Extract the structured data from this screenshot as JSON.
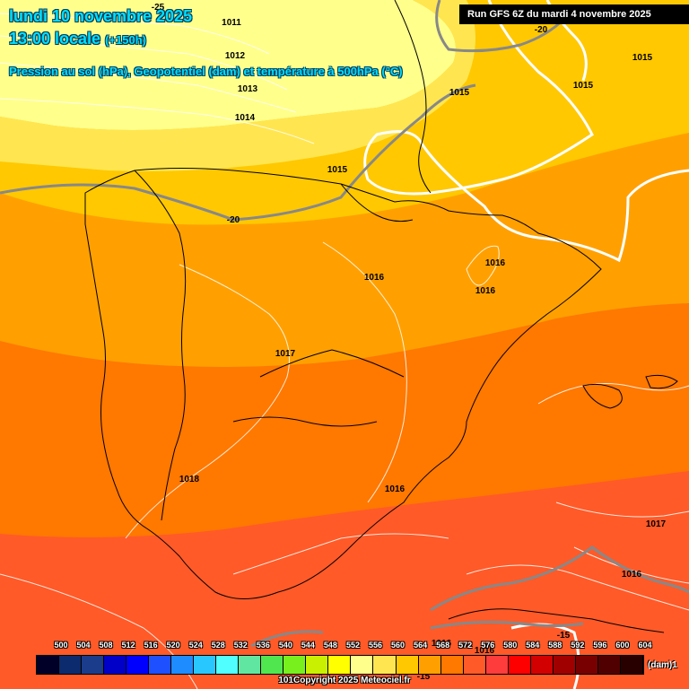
{
  "header": {
    "date_line": "lundi 10 novembre 2025",
    "time_lead": "13:00 locale",
    "time_offset": "(+150h)",
    "subtitle": "Pression au sol (hPa), Geopotentiel (dam) et température à 500hPa (°C)",
    "run_info": "Run GFS 6Z du mardi 4 novembre 2025"
  },
  "pressure_labels": [
    "1011",
    "1012",
    "1013",
    "1014",
    "1015",
    "1015",
    "1015",
    "1015",
    "1016",
    "1016",
    "1016",
    "1016",
    "1017",
    "1018",
    "1016",
    "1017",
    "1016",
    "1016"
  ],
  "temperature_labels": [
    "-25",
    "-20",
    "-20",
    "-15",
    "-15"
  ],
  "legend": {
    "values": [
      "500",
      "504",
      "508",
      "512",
      "516",
      "520",
      "524",
      "528",
      "532",
      "536",
      "540",
      "544",
      "548",
      "552",
      "556",
      "560",
      "564",
      "568",
      "572",
      "576",
      "580",
      "584",
      "588",
      "592",
      "596",
      "600",
      "604"
    ],
    "colors": [
      "#000028",
      "#0c2a6e",
      "#1a3c8a",
      "#0000c8",
      "#0000ff",
      "#1e50ff",
      "#1e8cff",
      "#28c8ff",
      "#50ffff",
      "#60e6a0",
      "#50e650",
      "#78f01e",
      "#c8f000",
      "#ffff00",
      "#ffff8c",
      "#ffe650",
      "#ffc800",
      "#ffa000",
      "#ff7800",
      "#ff5a28",
      "#ff3c3c",
      "#ff0000",
      "#d20000",
      "#a00000",
      "#780000",
      "#500000",
      "#280000"
    ],
    "unit": "(dam)",
    "unit_suffix": "1"
  },
  "footer": {
    "copyright": "Copyright 2025 Meteociel.fr",
    "prefix": "101"
  }
}
